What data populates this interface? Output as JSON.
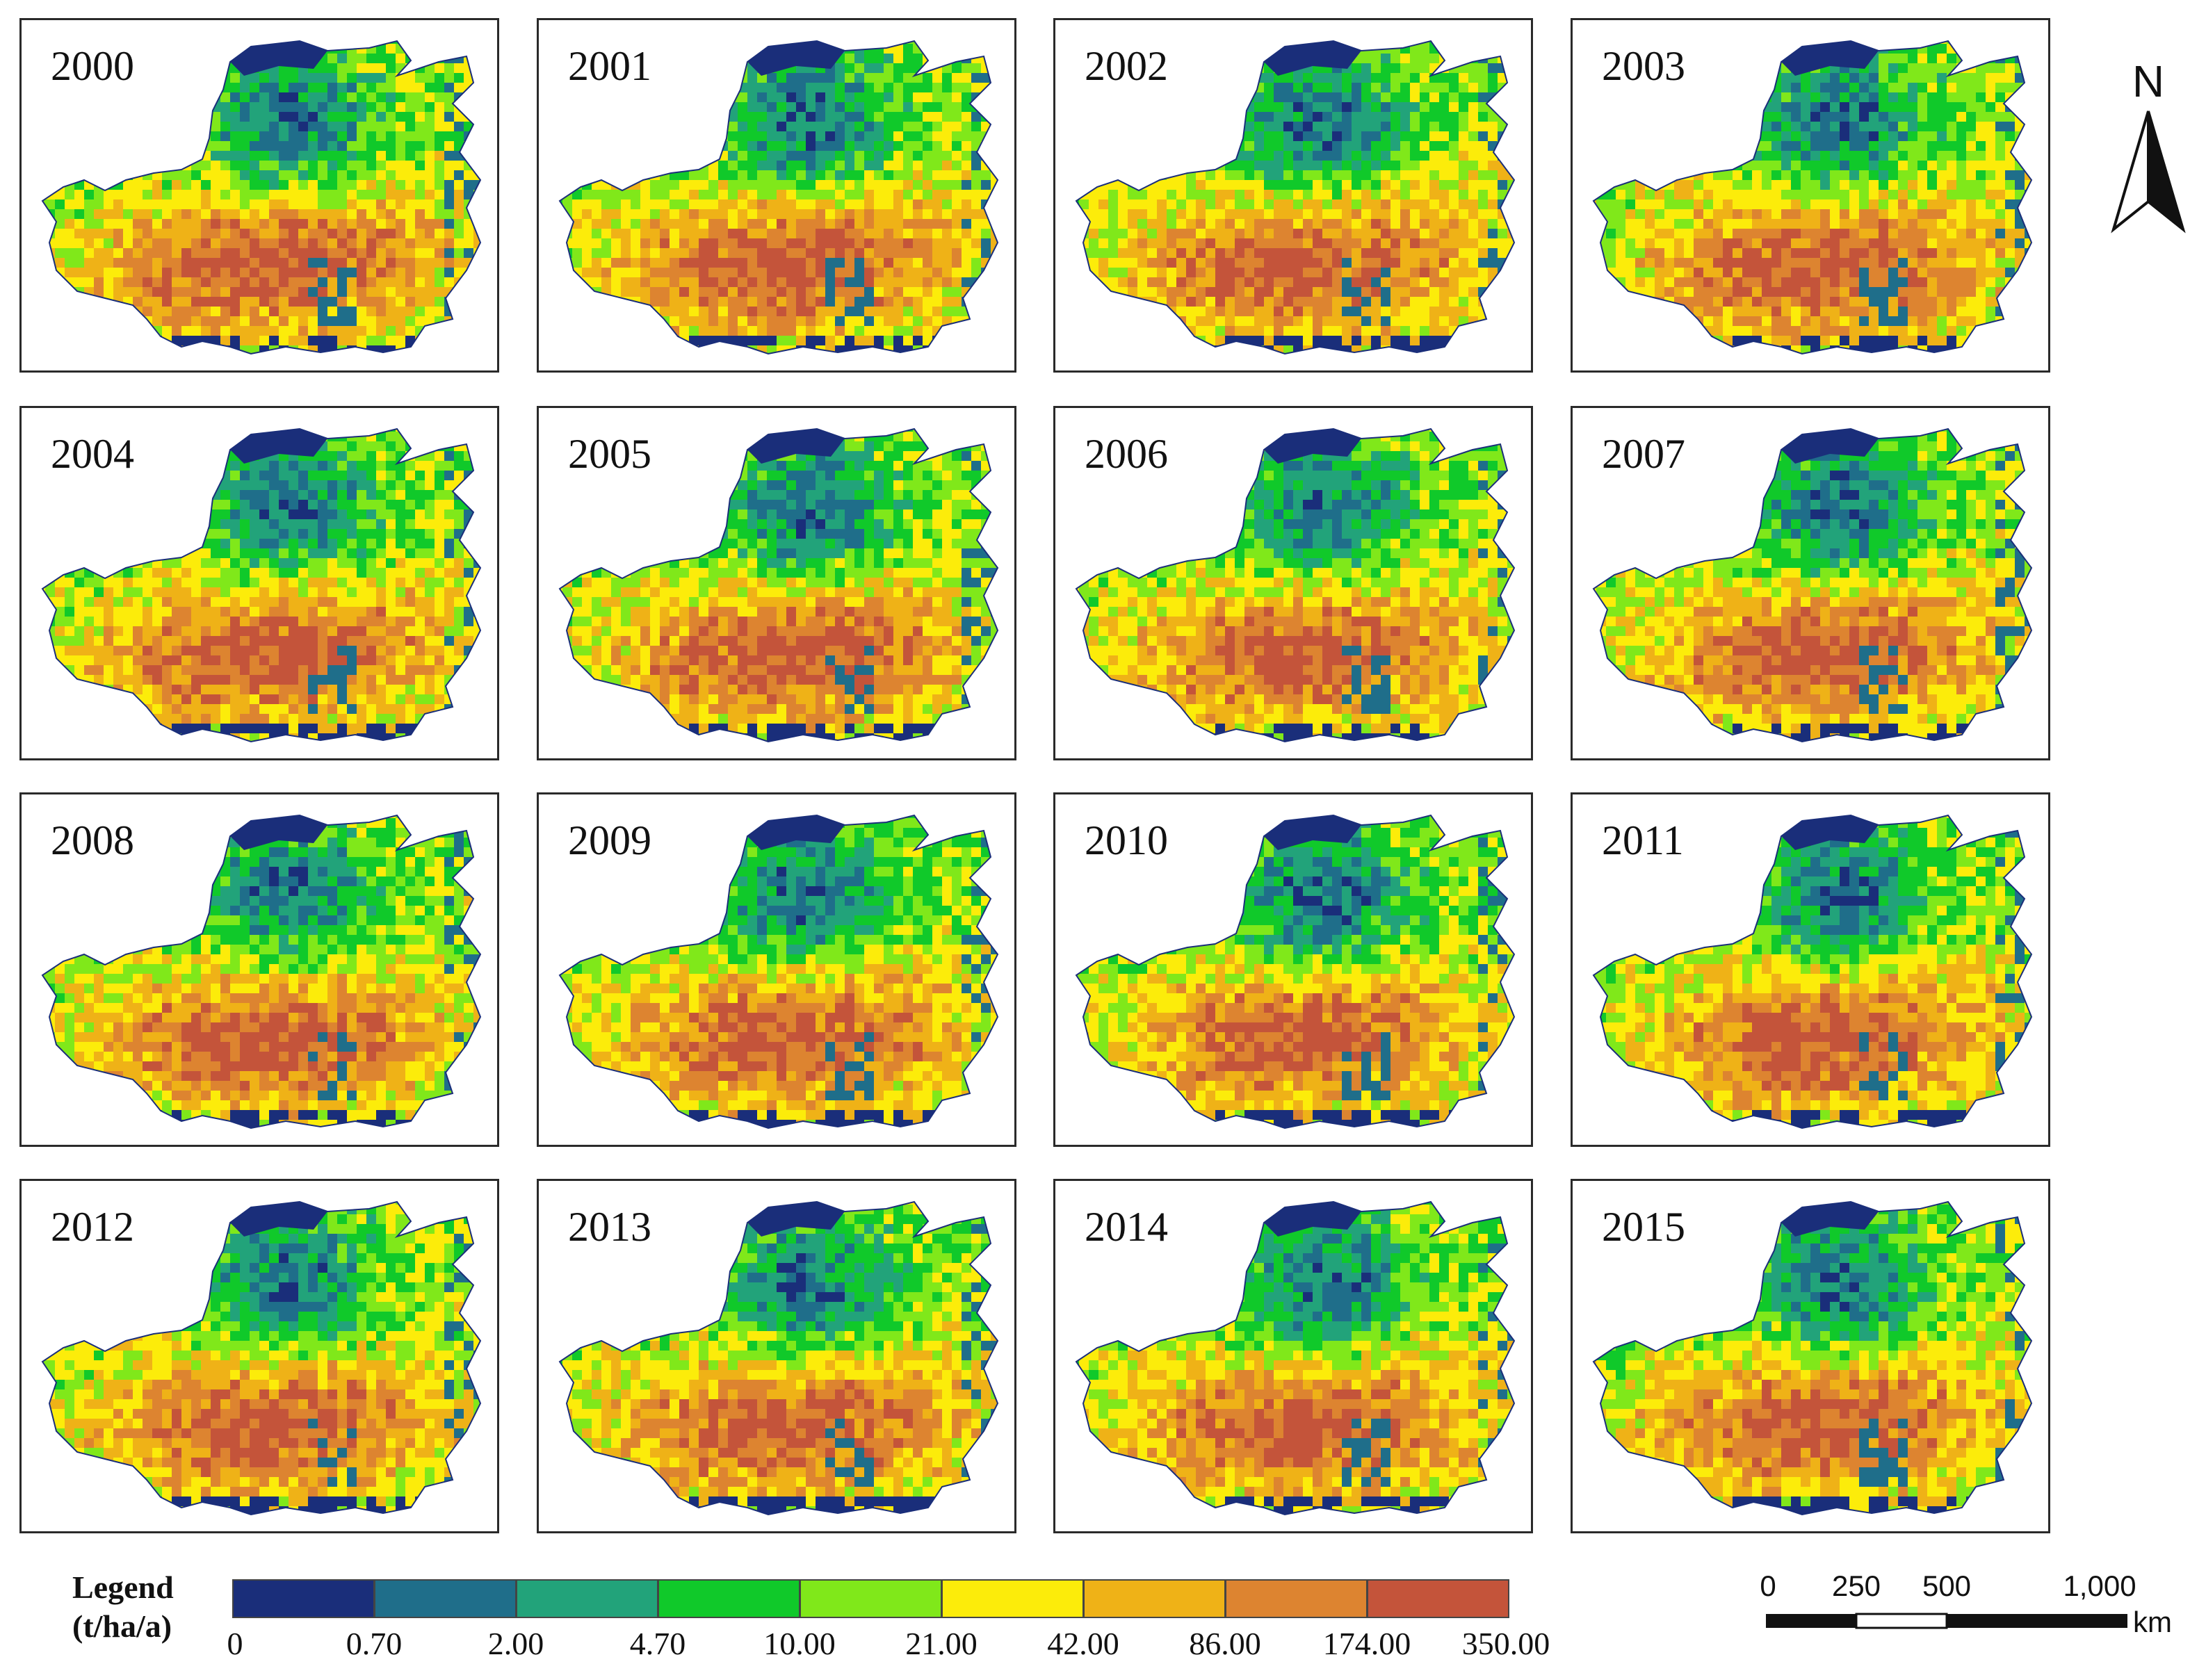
{
  "figure": {
    "panels": [
      {
        "year": "2000"
      },
      {
        "year": "2001"
      },
      {
        "year": "2002"
      },
      {
        "year": "2003"
      },
      {
        "year": "2004"
      },
      {
        "year": "2005"
      },
      {
        "year": "2006"
      },
      {
        "year": "2007"
      },
      {
        "year": "2008"
      },
      {
        "year": "2009"
      },
      {
        "year": "2010"
      },
      {
        "year": "2011"
      },
      {
        "year": "2012"
      },
      {
        "year": "2013"
      },
      {
        "year": "2014"
      },
      {
        "year": "2015"
      }
    ]
  },
  "legend": {
    "title_line1": "Legend",
    "title_line2": "(t/ha/a)",
    "breaks": [
      "0",
      "0.70",
      "2.00",
      "4.70",
      "10.00",
      "21.00",
      "42.00",
      "86.00",
      "174.00",
      "350.00"
    ],
    "colors": [
      "#1a2e7a",
      "#1f6e8a",
      "#22a37a",
      "#10c92a",
      "#80e81a",
      "#fcec0a",
      "#efb217",
      "#dd8430",
      "#c4543a"
    ]
  },
  "north_arrow": {
    "label": "N"
  },
  "scale_bar": {
    "labels": [
      "0",
      "250",
      "500",
      "1,000"
    ],
    "unit": "km"
  }
}
